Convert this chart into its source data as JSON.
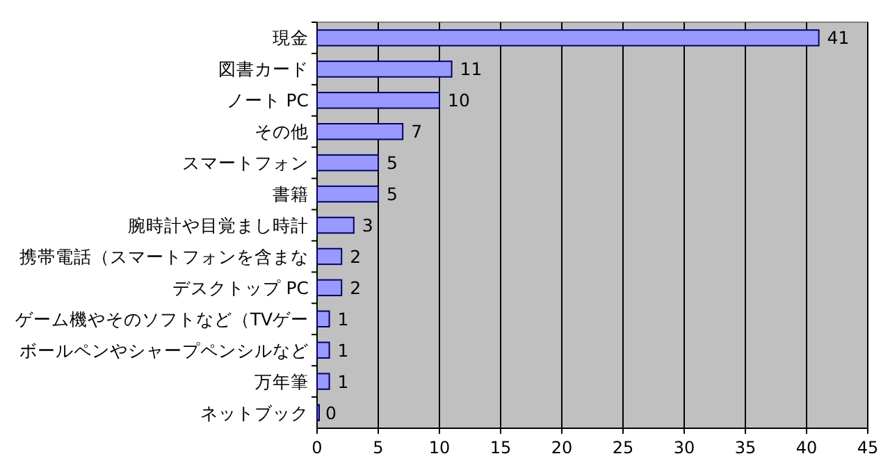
{
  "chart_data": {
    "type": "bar",
    "orientation": "horizontal",
    "categories": [
      "現金",
      "図書カード",
      "ノート PC",
      "その他",
      "スマートフォン",
      "書籍",
      "腕時計や目覚まし時計",
      "携帯電話（スマートフォンを含まな",
      "デスクトップ PC",
      "ゲーム機やそのソフトなど（TVゲー",
      "ボールペンやシャープペンシルなど",
      "万年筆",
      "ネットブック"
    ],
    "values": [
      41,
      11,
      10,
      7,
      5,
      5,
      3,
      2,
      2,
      1,
      1,
      1,
      0
    ],
    "color": "#9999ff",
    "xlim": [
      0,
      45
    ],
    "xticks": [
      0,
      5,
      10,
      15,
      20,
      25,
      30,
      35,
      40,
      45
    ],
    "grid": "x",
    "data_labels": true
  }
}
